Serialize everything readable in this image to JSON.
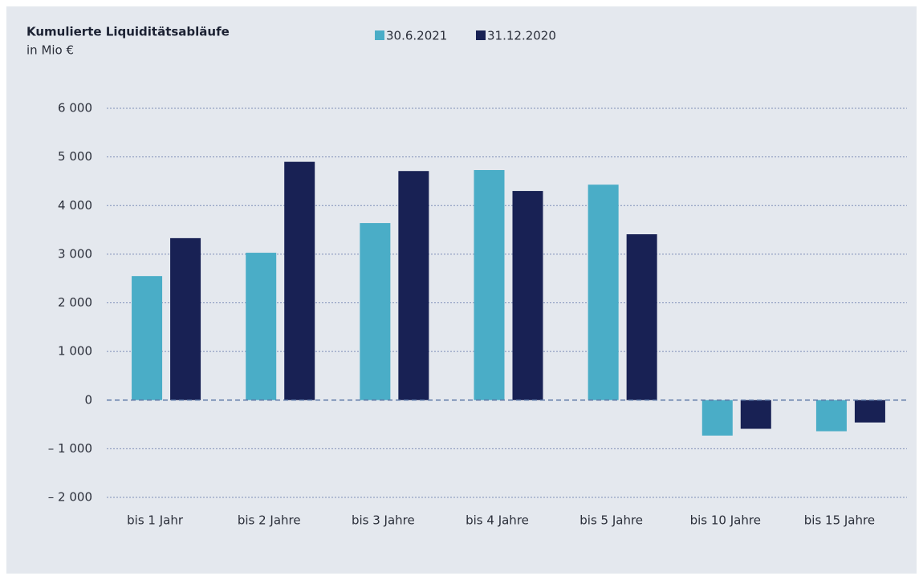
{
  "chart_data": {
    "type": "bar",
    "title": "Kumulierte Liquiditätsabläufe",
    "subtitle": "in Mio €",
    "categories": [
      "bis 1 Jahr",
      "bis 2 Jahre",
      "bis 3 Jahre",
      "bis 4 Jahre",
      "bis 5 Jahre",
      "bis 10 Jahre",
      "bis 15 Jahre"
    ],
    "series": [
      {
        "name": "30.6.2021",
        "color": "#4aadc7",
        "values": [
          2550,
          3030,
          3640,
          4730,
          4430,
          -730,
          -640
        ]
      },
      {
        "name": "31.12.2020",
        "color": "#182154",
        "values": [
          3330,
          4900,
          4710,
          4300,
          3410,
          -590,
          -460
        ]
      }
    ],
    "ylim": [
      -2000,
      6000
    ],
    "yticks": [
      {
        "value": -2000,
        "label": "– 2 000"
      },
      {
        "value": -1000,
        "label": "– 1 000"
      },
      0,
      {
        "value": 1000,
        "label": "1 000"
      },
      {
        "value": 2000,
        "label": "2 000"
      },
      {
        "value": 3000,
        "label": "3 000"
      },
      {
        "value": 4000,
        "label": "4 000"
      },
      {
        "value": 5000,
        "label": "5 000"
      },
      {
        "value": 6000,
        "label": "6 000"
      }
    ],
    "grid": true
  }
}
